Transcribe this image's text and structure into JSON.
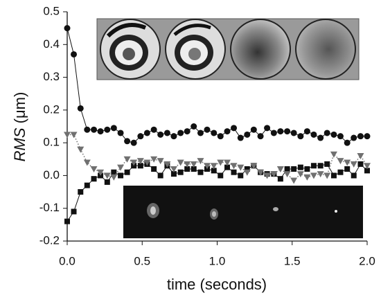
{
  "chart_data": {
    "type": "scatter",
    "xlabel": "time (seconds)",
    "ylabel": [
      "RMS",
      "(μm)"
    ],
    "xlim": [
      0,
      2.0
    ],
    "ylim": [
      -0.2,
      0.5
    ],
    "xticks": [
      {
        "value": 0,
        "label": "0.0"
      },
      0.5,
      {
        "value": 1,
        "label": "1.0"
      },
      1.5,
      {
        "value": 2,
        "label": "2.0"
      }
    ],
    "yticks": [
      -0.2,
      -0.1,
      {
        "value": 0,
        "label": "0.0"
      },
      0.1,
      0.2,
      0.3,
      0.4,
      0.5
    ],
    "x": [
      0,
      0.044,
      0.089,
      0.133,
      0.178,
      0.222,
      0.267,
      0.311,
      0.356,
      0.4,
      0.444,
      0.489,
      0.533,
      0.578,
      0.622,
      0.667,
      0.711,
      0.756,
      0.8,
      0.844,
      0.889,
      0.933,
      0.978,
      1.022,
      1.067,
      1.111,
      1.156,
      1.2,
      1.244,
      1.289,
      1.333,
      1.378,
      1.422,
      1.467,
      1.511,
      1.556,
      1.6,
      1.644,
      1.689,
      1.733,
      1.778,
      1.822,
      1.867,
      1.911,
      1.956,
      2.0
    ],
    "series": [
      {
        "color": "#111111",
        "marker": "circle",
        "linestyle": "solid",
        "values": [
          0.45,
          0.37,
          0.205,
          0.14,
          0.14,
          0.135,
          0.14,
          0.145,
          0.13,
          0.105,
          0.1,
          0.12,
          0.13,
          0.14,
          0.125,
          0.13,
          0.12,
          0.13,
          0.135,
          0.15,
          0.13,
          0.14,
          0.13,
          0.12,
          0.135,
          0.145,
          0.115,
          0.125,
          0.14,
          0.12,
          0.145,
          0.13,
          0.135,
          0.135,
          0.13,
          0.12,
          0.135,
          0.125,
          0.115,
          0.13,
          0.125,
          0.12,
          0.1,
          0.115,
          0.12,
          0.12
        ]
      },
      {
        "color": "#111111",
        "marker": "square",
        "linestyle": "solid",
        "values": [
          -0.14,
          -0.11,
          -0.05,
          -0.03,
          -0.01,
          0.0,
          -0.02,
          0.01,
          0.0,
          0.01,
          0.03,
          0.03,
          0.035,
          0.02,
          0.0,
          0.03,
          0.005,
          0.01,
          0.02,
          0.02,
          0.01,
          0.02,
          0.015,
          0.0,
          0.025,
          0.01,
          0.0,
          0.02,
          0.03,
          0.01,
          0.005,
          0.005,
          -0.01,
          0.02,
          0.02,
          0.025,
          0.02,
          0.03,
          0.03,
          0.035,
          0.0,
          0.01,
          0.02,
          0.0,
          0.035,
          0.015
        ]
      },
      {
        "color": "#707070",
        "marker": "triangle-down",
        "linestyle": "dotted",
        "values": [
          0.125,
          0.125,
          0.08,
          0.04,
          0.02,
          0.01,
          0.0,
          -0.005,
          0.025,
          0.05,
          0.04,
          0.045,
          0.04,
          0.05,
          0.045,
          0.035,
          0.02,
          0.04,
          0.035,
          0.035,
          0.045,
          0.03,
          0.03,
          0.04,
          0.04,
          0.03,
          0.025,
          0.01,
          0.03,
          0.01,
          0.0,
          0.005,
          0.02,
          0.005,
          -0.015,
          0.005,
          -0.005,
          0.0,
          0.005,
          0.0,
          0.065,
          0.045,
          0.04,
          0.035,
          0.06,
          0.03
        ]
      }
    ]
  }
}
